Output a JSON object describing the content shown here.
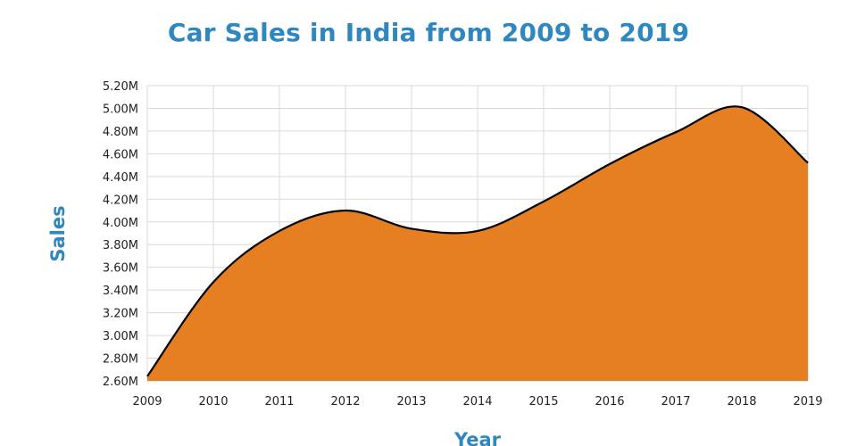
{
  "chart_data": {
    "type": "area",
    "title": "Car Sales in India from 2009 to 2019",
    "xlabel": "Year",
    "ylabel": "Sales",
    "x": [
      "2009",
      "2010",
      "2011",
      "2012",
      "2013",
      "2014",
      "2015",
      "2016",
      "2017",
      "2018",
      "2019"
    ],
    "series": [
      {
        "values": [
          2.64,
          3.47,
          3.92,
          4.1,
          3.94,
          3.92,
          4.18,
          4.51,
          4.79,
          5.01,
          4.52
        ]
      }
    ],
    "ylim": [
      2.6,
      5.2
    ],
    "yticks": [
      2.6,
      2.8,
      3.0,
      3.2,
      3.4,
      3.6,
      3.8,
      4.0,
      4.2,
      4.4,
      4.6,
      4.8,
      5.0,
      5.2
    ],
    "ytick_labels": [
      "2.60M",
      "2.80M",
      "3.00M",
      "3.20M",
      "3.40M",
      "3.60M",
      "3.80M",
      "4.00M",
      "4.20M",
      "4.40M",
      "4.60M",
      "4.80M",
      "5.00M",
      "5.20M"
    ],
    "grid": true,
    "fill_color": "#e67e22",
    "line_color": "#000000",
    "title_color": "#2f87c0"
  }
}
